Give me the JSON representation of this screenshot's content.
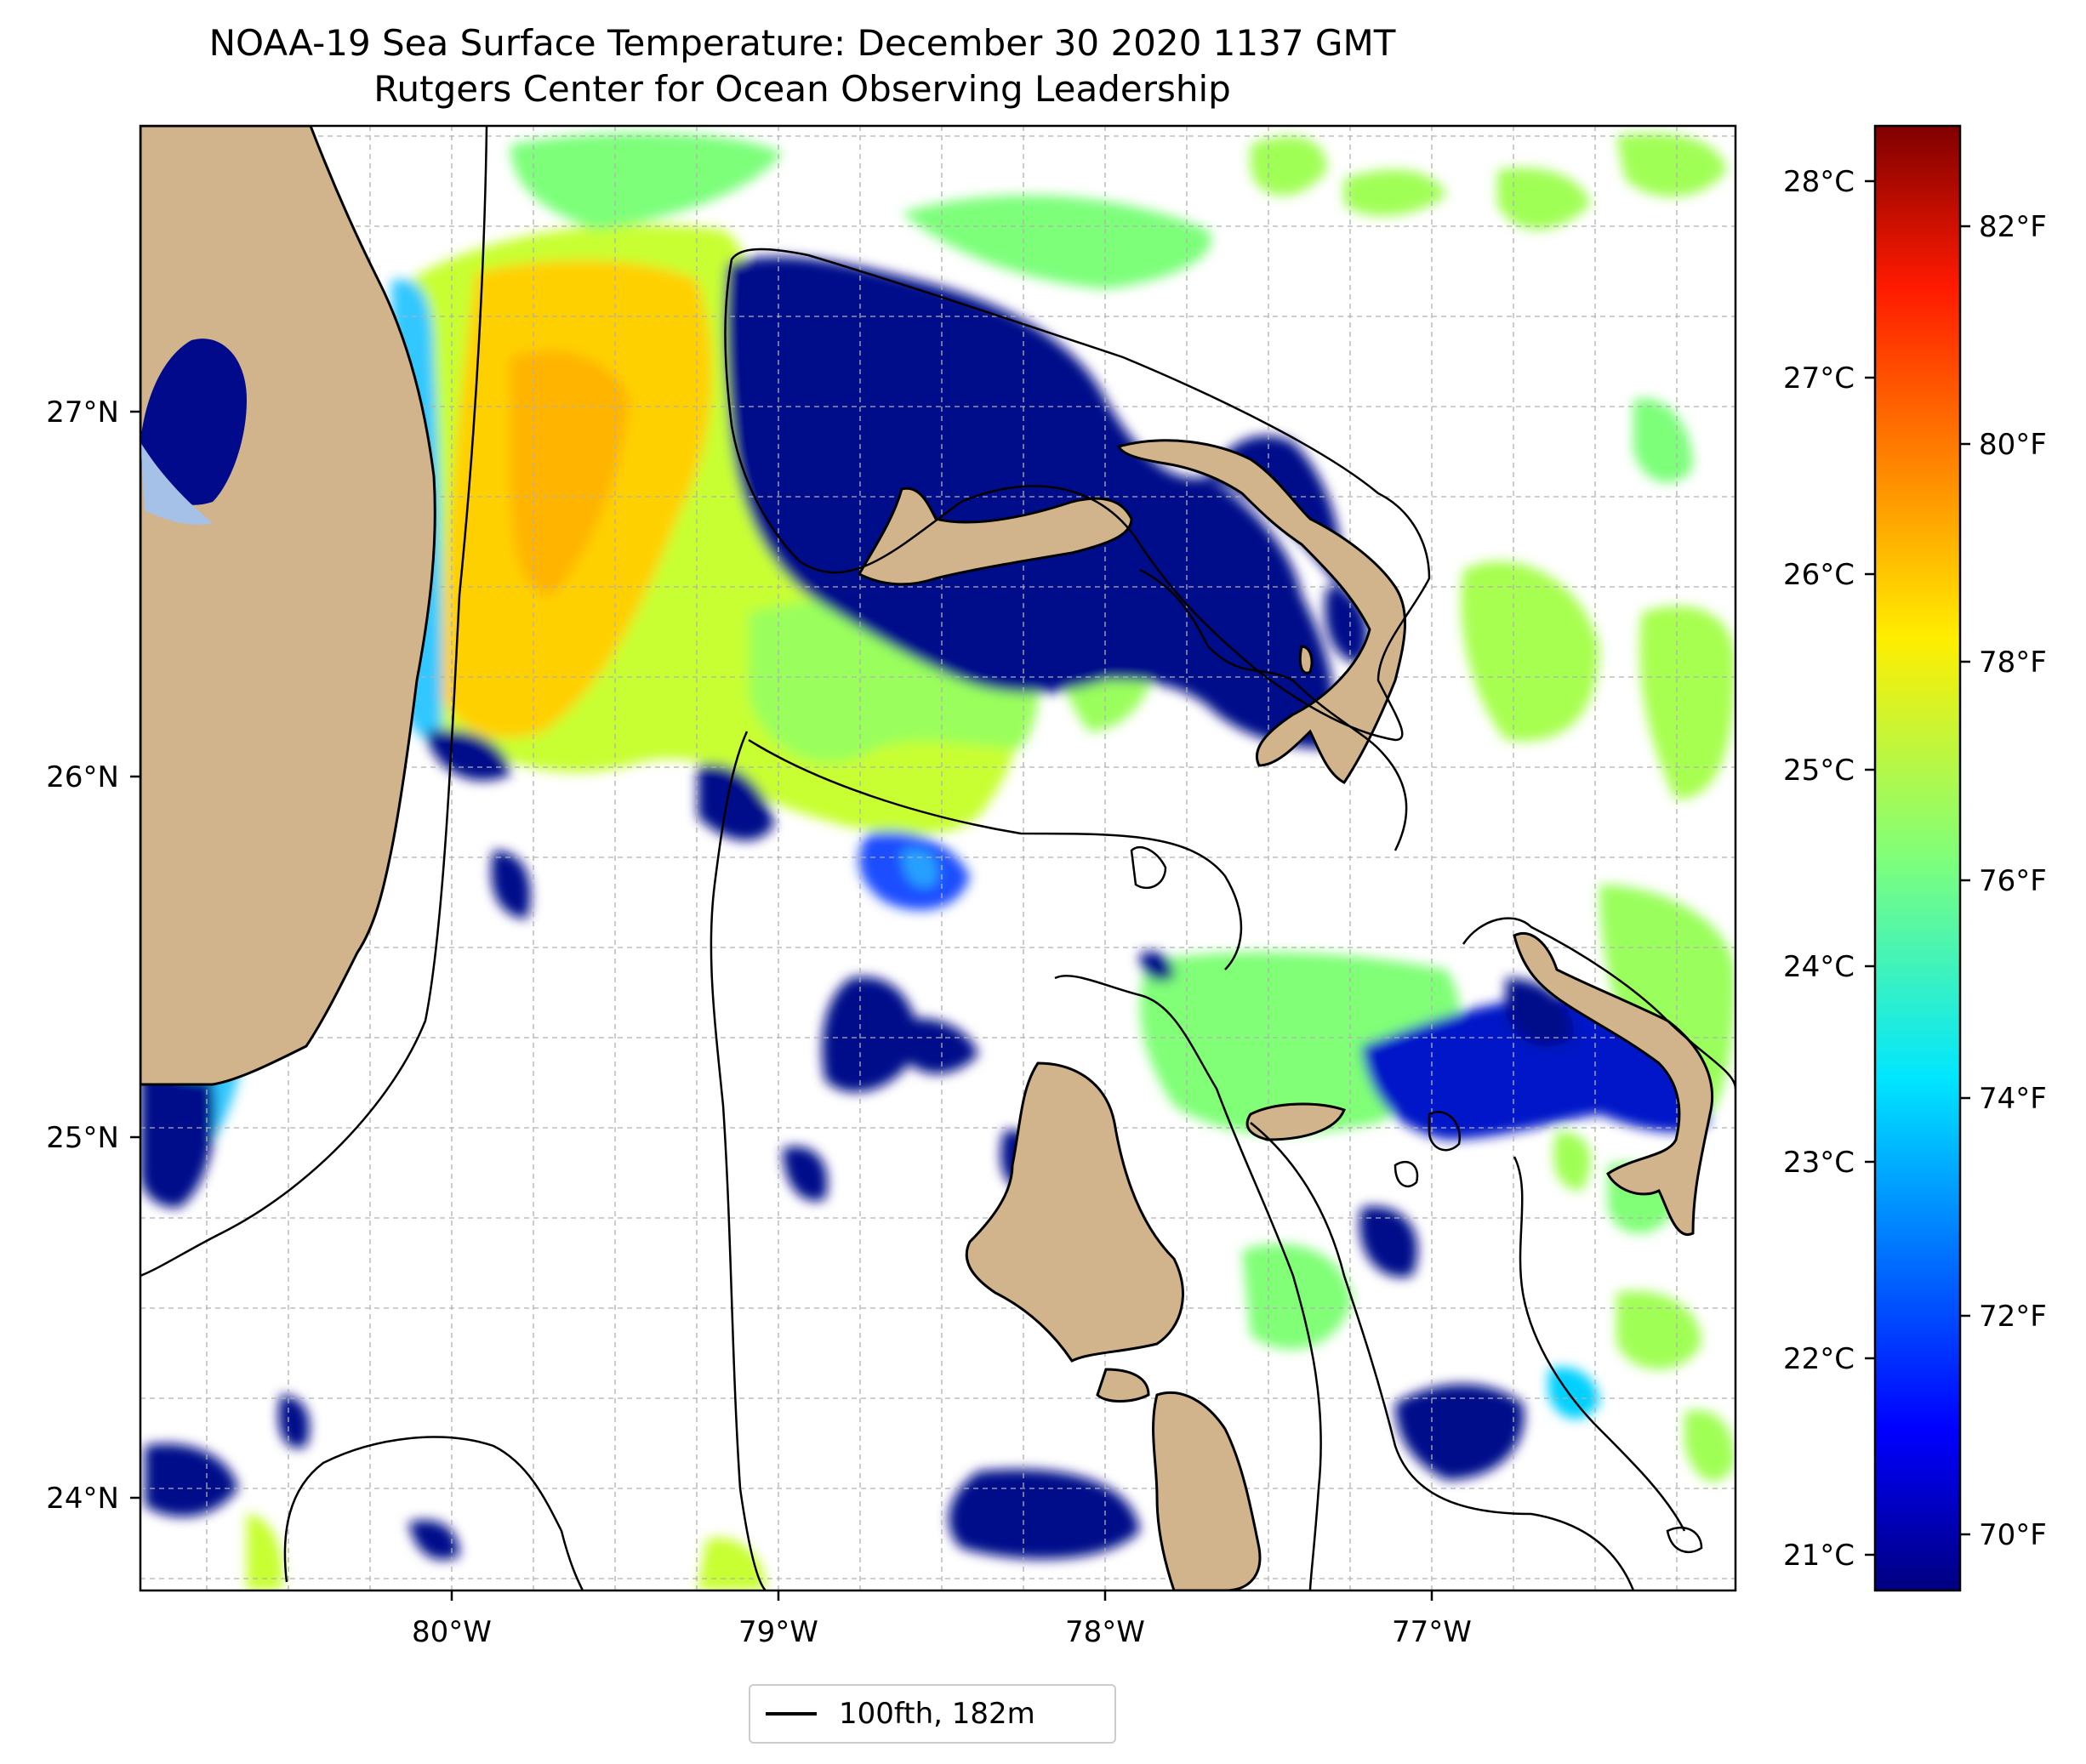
{
  "title": {
    "line1": "NOAA-19 Sea Surface Temperature: December 30 2020 1137 GMT",
    "line2": "Rutgers Center for Ocean Observing Leadership"
  },
  "map": {
    "lon_labels": [
      "80°W",
      "79°W",
      "78°W",
      "77°W"
    ],
    "lat_labels": [
      "27°N",
      "26°N",
      "25°N",
      "24°N"
    ],
    "extent": {
      "lon": [
        -80.95,
        -76.1
      ],
      "lat": [
        23.75,
        27.8
      ]
    },
    "gridlines": true,
    "colors": {
      "land": "#d2b48c",
      "lake": "#000080",
      "lake_shallow": "#a6c1e8",
      "contour": "#000000",
      "grid": "#b0b0b0",
      "no_data": "#ffffff"
    }
  },
  "colorbar": {
    "colormap": "jet",
    "celsius_labels": [
      "28°C",
      "27°C",
      "26°C",
      "25°C",
      "24°C",
      "23°C",
      "22°C",
      "21°C"
    ],
    "fahrenheit_labels": [
      "82°F",
      "80°F",
      "78°F",
      "76°F",
      "74°F",
      "72°F",
      "70°F"
    ],
    "range_f": [
      69.3,
      83.2
    ]
  },
  "legend": {
    "label": "100fth, 182m",
    "position": "bottom-center"
  }
}
